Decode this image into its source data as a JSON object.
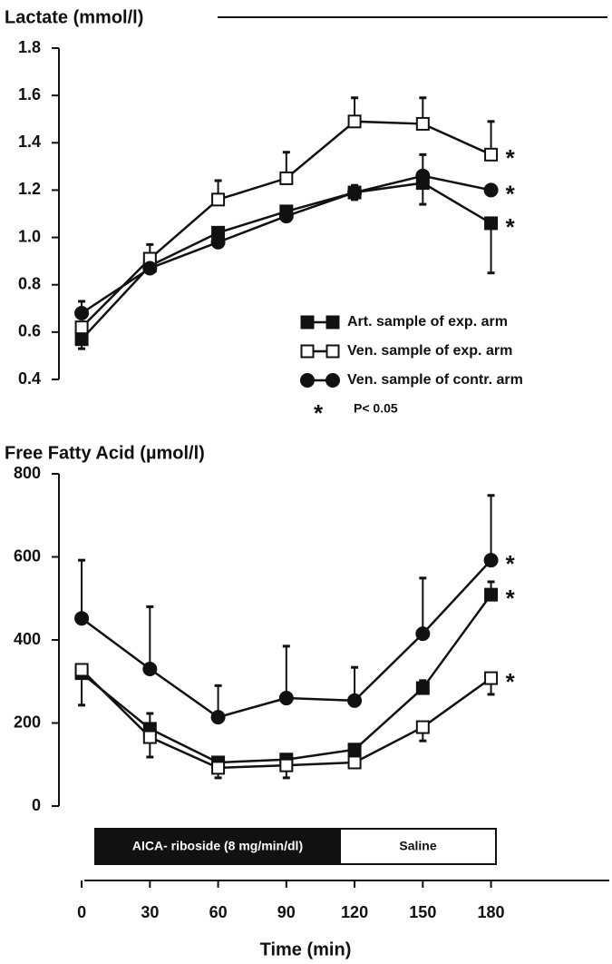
{
  "chart_data": [
    {
      "type": "line",
      "title": "Lactate (mmol/l)",
      "x": [
        0,
        30,
        60,
        90,
        120,
        150,
        180
      ],
      "xlim": [
        -10,
        232
      ],
      "ylim": [
        0.4,
        1.8
      ],
      "yticks": [
        0.4,
        0.6,
        0.8,
        {
          "value": 1,
          "label": "1.0"
        },
        1.2,
        1.4,
        1.6,
        1.8
      ],
      "legend": "center-right",
      "significance_marker": "*",
      "significance_label": "P< 0.05",
      "series": [
        {
          "name": "Art. sample of exp. arm",
          "color": "#111111",
          "marker": "square-filled",
          "error_side": "down",
          "values": [
            0.57,
            0.88,
            1.02,
            1.11,
            1.19,
            1.23,
            1.06
          ],
          "errors": [
            0.04,
            0.03,
            null,
            null,
            0.03,
            0.09,
            0.21
          ]
        },
        {
          "name": "Ven. sample of exp. arm",
          "color": "#111111",
          "marker": "square-open",
          "error_side": "up",
          "values": [
            0.62,
            0.91,
            1.16,
            1.25,
            1.49,
            1.48,
            1.35
          ],
          "errors": [
            null,
            0.06,
            0.08,
            0.11,
            0.1,
            0.11,
            0.14
          ]
        },
        {
          "name": "Ven. sample of contr. arm",
          "color": "#111111",
          "marker": "circle-filled",
          "error_side": "up",
          "values": [
            0.68,
            0.87,
            0.98,
            1.09,
            1.19,
            1.26,
            1.2
          ],
          "errors": [
            0.05,
            null,
            null,
            0.04,
            0.03,
            0.09,
            null
          ]
        }
      ]
    },
    {
      "type": "line",
      "title": "Free Fatty Acid (µmol/l)",
      "x": [
        0,
        30,
        60,
        90,
        120,
        150,
        180
      ],
      "xlim": [
        -10,
        232
      ],
      "xticks": [
        0,
        30,
        60,
        90,
        120,
        150,
        180
      ],
      "xlabel": "Time (min)",
      "ylim": [
        0,
        800
      ],
      "yticks": [
        0,
        200,
        400,
        600,
        800
      ],
      "significance_marker": "*",
      "series": [
        {
          "name": "Art. sample of exp. arm",
          "color": "#111111",
          "marker": "square-filled",
          "error_side": "up",
          "values": [
            320,
            186,
            105,
            112,
            136,
            284,
            509
          ],
          "errors": [
            null,
            37,
            null,
            null,
            null,
            18,
            31
          ]
        },
        {
          "name": "Ven. sample of exp. arm",
          "color": "#111111",
          "marker": "square-open",
          "error_side": "down",
          "values": [
            328,
            166,
            92,
            98,
            105,
            190,
            308
          ],
          "errors": [
            85,
            48,
            24,
            30,
            null,
            33,
            39
          ]
        },
        {
          "name": "Ven. sample of contr. arm",
          "color": "#111111",
          "marker": "circle-filled",
          "error_side": "up",
          "values": [
            452,
            330,
            214,
            260,
            254,
            415,
            592
          ],
          "errors": [
            140,
            150,
            76,
            125,
            80,
            134,
            156
          ]
        }
      ]
    }
  ],
  "treatment_bar": {
    "labels": [
      "AICA- riboside (8 mg/min/dl)",
      "Saline"
    ]
  }
}
